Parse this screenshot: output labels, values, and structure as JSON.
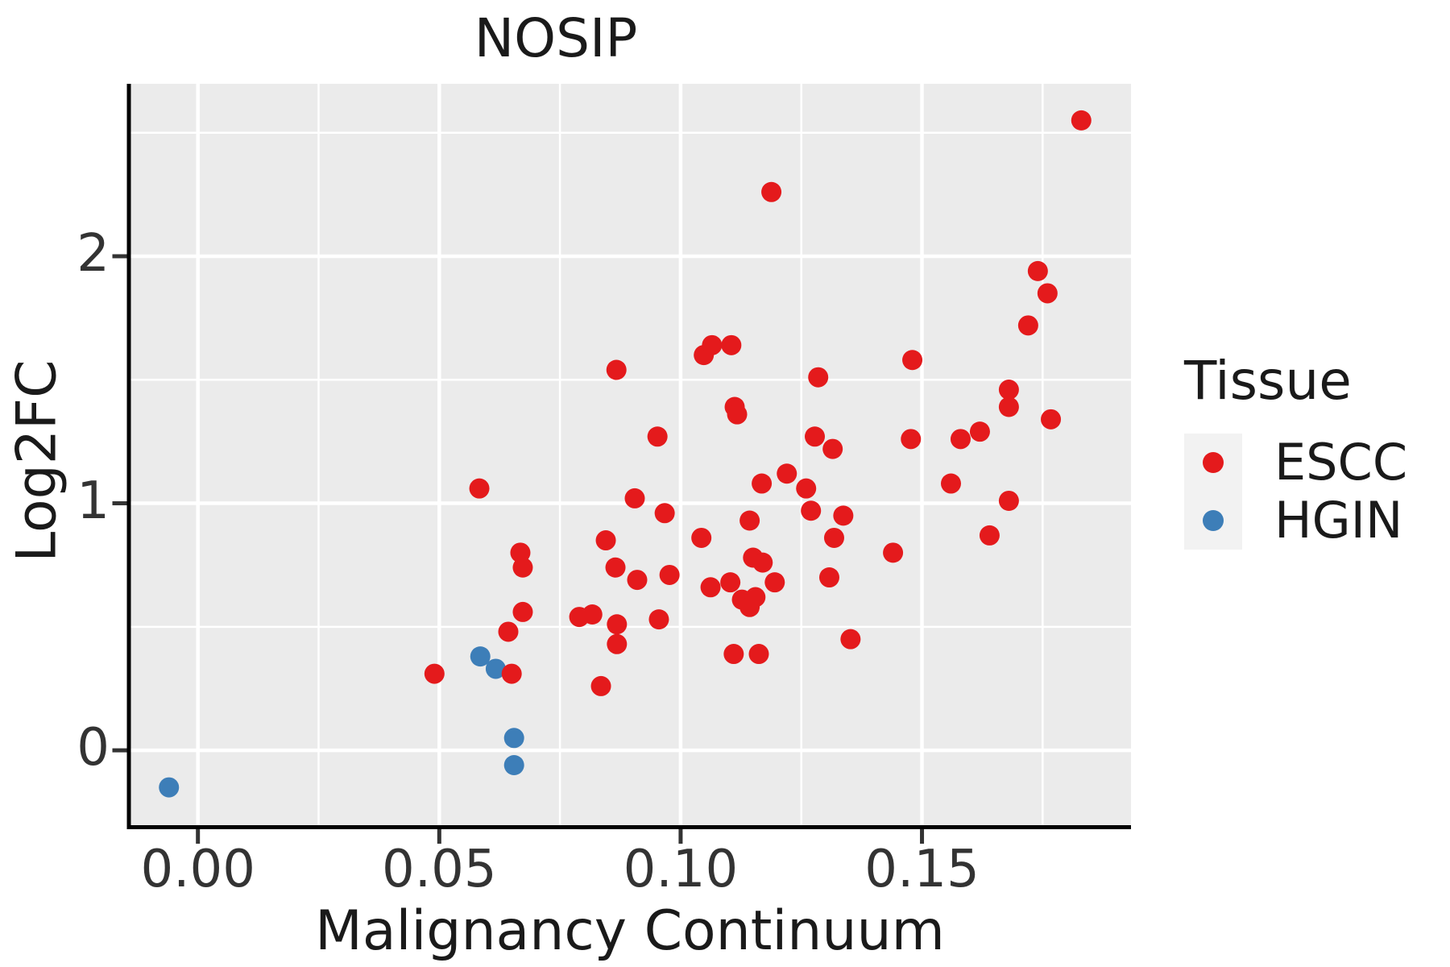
{
  "title": "NOSIP",
  "colors": {
    "escc": "#e41a1c",
    "hgin": "#3d7eb8",
    "panel_bg": "#ebebeb",
    "grid": "#ffffff",
    "spine": "#000000",
    "tick": "#333333",
    "text": "#1a1a1a",
    "legend_key_bg": "#f2f2f2"
  },
  "legend": {
    "title": "Tissue",
    "position": "right",
    "entries": [
      {
        "label": "ESCC",
        "color": "#e41a1c"
      },
      {
        "label": "HGIN",
        "color": "#3d7eb8"
      }
    ]
  },
  "chart_data": {
    "type": "scatter",
    "title": "NOSIP",
    "xlabel": "Malignancy Continuum",
    "ylabel": "Log2FC",
    "x_ticks": [
      0.0,
      0.05,
      0.1,
      0.15
    ],
    "x_tick_labels": [
      "0.00",
      "0.05",
      "0.10",
      "0.15"
    ],
    "y_ticks": [
      0,
      1,
      2
    ],
    "y_tick_labels": [
      "0",
      "1",
      "2"
    ],
    "x_minor_gridlines": [
      0.025,
      0.075,
      0.125,
      0.175
    ],
    "y_minor_gridlines": [
      0.5,
      1.5,
      2.5
    ],
    "xlim": [
      -0.0143,
      0.1933
    ],
    "ylim": [
      -0.303,
      2.698
    ],
    "grid": true,
    "legend_position": "right",
    "point_radius": 12.5,
    "series": [
      {
        "name": "HGIN",
        "color": "#3d7eb8",
        "points": [
          [
            -0.006,
            -0.15
          ],
          [
            0.0585,
            0.38
          ],
          [
            0.0617,
            0.33
          ],
          [
            0.0655,
            0.05
          ],
          [
            0.0655,
            -0.06
          ]
        ]
      },
      {
        "name": "ESCC",
        "color": "#e41a1c",
        "points": [
          [
            0.049,
            0.31
          ],
          [
            0.0583,
            1.06
          ],
          [
            0.0643,
            0.48
          ],
          [
            0.065,
            0.31
          ],
          [
            0.0668,
            0.8
          ],
          [
            0.0673,
            0.74
          ],
          [
            0.0673,
            0.56
          ],
          [
            0.079,
            0.54
          ],
          [
            0.0817,
            0.55
          ],
          [
            0.0835,
            0.26
          ],
          [
            0.0845,
            0.85
          ],
          [
            0.0865,
            0.74
          ],
          [
            0.0867,
            1.54
          ],
          [
            0.0868,
            0.51
          ],
          [
            0.0868,
            0.43
          ],
          [
            0.0905,
            1.02
          ],
          [
            0.091,
            0.69
          ],
          [
            0.0952,
            1.27
          ],
          [
            0.0955,
            0.53
          ],
          [
            0.0967,
            0.96
          ],
          [
            0.0977,
            0.71
          ],
          [
            0.1043,
            0.86
          ],
          [
            0.1048,
            1.6
          ],
          [
            0.1062,
            0.66
          ],
          [
            0.1065,
            1.64
          ],
          [
            0.1103,
            0.68
          ],
          [
            0.1105,
            1.64
          ],
          [
            0.111,
            0.39
          ],
          [
            0.1112,
            1.39
          ],
          [
            0.1117,
            1.36
          ],
          [
            0.1127,
            0.61
          ],
          [
            0.1143,
            0.58
          ],
          [
            0.1143,
            0.93
          ],
          [
            0.115,
            0.78
          ],
          [
            0.1155,
            0.62
          ],
          [
            0.1162,
            0.39
          ],
          [
            0.1168,
            1.08
          ],
          [
            0.117,
            0.76
          ],
          [
            0.1188,
            2.26
          ],
          [
            0.1195,
            0.68
          ],
          [
            0.122,
            1.12
          ],
          [
            0.126,
            1.06
          ],
          [
            0.127,
            0.97
          ],
          [
            0.1278,
            1.27
          ],
          [
            0.1285,
            1.51
          ],
          [
            0.1308,
            0.7
          ],
          [
            0.1315,
            1.22
          ],
          [
            0.1318,
            0.86
          ],
          [
            0.1337,
            0.95
          ],
          [
            0.1352,
            0.45
          ],
          [
            0.144,
            0.8
          ],
          [
            0.1477,
            1.26
          ],
          [
            0.148,
            1.58
          ],
          [
            0.156,
            1.08
          ],
          [
            0.158,
            1.26
          ],
          [
            0.162,
            1.29
          ],
          [
            0.164,
            0.87
          ],
          [
            0.168,
            1.46
          ],
          [
            0.168,
            1.39
          ],
          [
            0.168,
            1.01
          ],
          [
            0.172,
            1.72
          ],
          [
            0.174,
            1.94
          ],
          [
            0.176,
            1.85
          ],
          [
            0.1767,
            1.34
          ],
          [
            0.183,
            2.55
          ]
        ]
      }
    ]
  }
}
